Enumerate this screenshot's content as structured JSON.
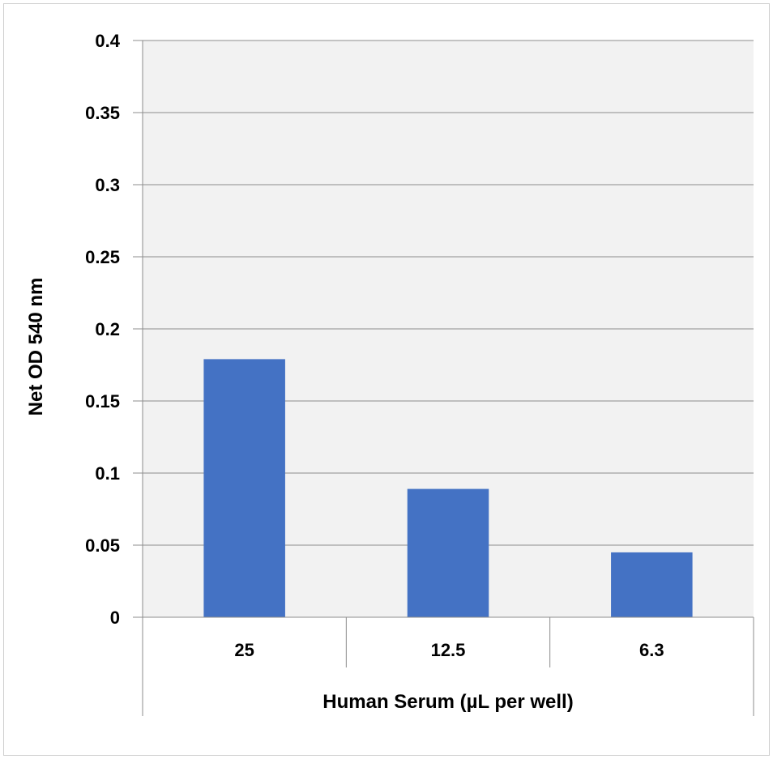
{
  "chart_data": {
    "type": "bar",
    "title": "",
    "xlabel": "Human Serum (µL per well)",
    "ylabel": "Net OD 540 nm",
    "categories": [
      "25",
      "12.5",
      "6.3"
    ],
    "values": [
      0.179,
      0.089,
      0.045
    ],
    "ylim": [
      0,
      0.4
    ],
    "yticks": [
      "0",
      "0.05",
      "0.1",
      "0.15",
      "0.2",
      "0.25",
      "0.3",
      "0.35",
      "0.4"
    ],
    "grid": true,
    "legend": "none",
    "colors": {
      "bar": "#4472C4",
      "plot_background": "#F2F2F2",
      "gridline": "#8C8C8C"
    }
  }
}
